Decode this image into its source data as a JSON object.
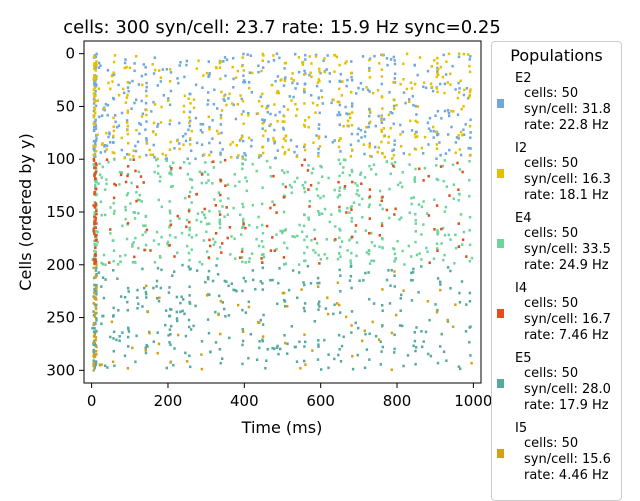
{
  "chart_data": {
    "type": "scatter",
    "title": "cells: 300   syn/cell: 23.7   rate: 15.9 Hz    sync=0.25",
    "xlabel": "Time (ms)",
    "ylabel": "Cells (ordered by y)",
    "xlim": [
      -20,
      1020
    ],
    "ylim": [
      312,
      -12
    ],
    "y_inverted": true,
    "xticks": [
      0,
      200,
      400,
      600,
      800,
      1000
    ],
    "yticks": [
      0,
      50,
      100,
      150,
      200,
      250,
      300
    ],
    "grid": false,
    "marker": "small square",
    "legend": {
      "title": "Populations",
      "placement": "outside-right"
    },
    "series": [
      {
        "name": "E2",
        "color": "#6fa8dc",
        "cell_range": [
          0,
          100
        ],
        "cells": "cells: 50",
        "syn": "syn/cell: 31.8",
        "rate": "rate: 22.8 Hz"
      },
      {
        "name": "I2",
        "color": "#e6c000",
        "cell_range": [
          0,
          100
        ],
        "cells": "cells: 50",
        "syn": "syn/cell: 16.3",
        "rate": "rate: 18.1 Hz"
      },
      {
        "name": "E4",
        "color": "#6fd49c",
        "cell_range": [
          100,
          200
        ],
        "cells": "cells: 50",
        "syn": "syn/cell: 33.5",
        "rate": "rate: 24.9 Hz"
      },
      {
        "name": "I4",
        "color": "#e0501a",
        "cell_range": [
          100,
          200
        ],
        "cells": "cells: 50",
        "syn": "syn/cell: 16.7",
        "rate": "rate: 7.46 Hz"
      },
      {
        "name": "E5",
        "color": "#55aaa0",
        "cell_range": [
          200,
          300
        ],
        "cells": "cells: 50",
        "syn": "syn/cell: 28.0",
        "rate": "rate: 17.9 Hz"
      },
      {
        "name": "I5",
        "color": "#d4a017",
        "cell_range": [
          200,
          300
        ],
        "cells": "cells: 50",
        "syn": "syn/cell: 15.6",
        "rate": "rate: 4.46 Hz"
      }
    ]
  }
}
